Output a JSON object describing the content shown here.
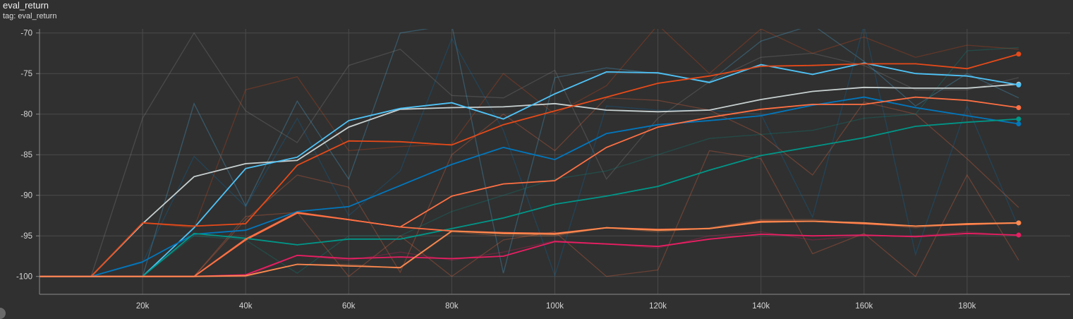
{
  "header": {
    "title": "eval_return",
    "tag": "tag: eval_return"
  },
  "chart_data": {
    "type": "line",
    "title": "eval_return",
    "xlabel": "",
    "ylabel": "",
    "xlim": [
      0,
      200000
    ],
    "ylim": [
      -102.2,
      -69.5
    ],
    "x_ticks": [
      20000,
      40000,
      60000,
      80000,
      100000,
      120000,
      140000,
      160000,
      180000
    ],
    "x_tick_labels": [
      "20k",
      "40k",
      "60k",
      "80k",
      "100k",
      "120k",
      "140k",
      "160k",
      "180k"
    ],
    "y_ticks": [
      -100,
      -95,
      -90,
      -85,
      -80,
      -75,
      -70
    ],
    "y_tick_labels": [
      "-100",
      "-95",
      "-90",
      "-85",
      "-80",
      "-75",
      "-70"
    ],
    "grid": true,
    "legend": "none",
    "x": [
      0,
      10000,
      20000,
      30000,
      40000,
      50000,
      60000,
      70000,
      80000,
      90000,
      100000,
      110000,
      120000,
      130000,
      140000,
      150000,
      160000,
      170000,
      180000,
      190000
    ],
    "series": [
      {
        "color": "#c8d0d0",
        "values": [
          -100,
          -100,
          -93.5,
          -87.7,
          -86.1,
          -85.7,
          -81.6,
          -79.4,
          -79.2,
          -79.1,
          -78.7,
          -79.5,
          -79.7,
          -79.5,
          -78.2,
          -77.2,
          -76.7,
          -76.8,
          -76.8,
          -76.3
        ]
      },
      {
        "color": "#4fc3f7",
        "values": [
          -100,
          -100,
          -100,
          -94.0,
          -86.7,
          -85.3,
          -80.8,
          -79.3,
          -78.6,
          -80.6,
          -77.5,
          -74.8,
          -74.9,
          -76.1,
          -73.9,
          -75.1,
          -73.7,
          -75.0,
          -75.3,
          -76.4
        ]
      },
      {
        "color": "#e64a19",
        "values": [
          -100,
          -100,
          -93.4,
          -93.8,
          -93.5,
          -86.3,
          -83.3,
          -83.4,
          -83.8,
          -81.3,
          -79.6,
          -77.9,
          -76.2,
          -75.3,
          -74.1,
          -74.0,
          -73.8,
          -73.8,
          -74.4,
          -72.6
        ]
      },
      {
        "color": "#0277bd",
        "values": [
          -100,
          -100,
          -98.2,
          -94.8,
          -94.3,
          -92.0,
          -91.4,
          -88.8,
          -86.2,
          -84.1,
          -85.6,
          -82.4,
          -81.3,
          -80.8,
          -80.2,
          -78.9,
          -77.9,
          -79.2,
          -80.2,
          -81.2
        ]
      },
      {
        "color": "#ff7043",
        "values": [
          -100,
          -100,
          -100,
          -100,
          -95.5,
          -92.2,
          -93.0,
          -93.9,
          -90.1,
          -88.6,
          -88.2,
          -84.1,
          -81.6,
          -80.4,
          -79.4,
          -78.8,
          -78.8,
          -77.9,
          -78.3,
          -79.2
        ]
      },
      {
        "color": "#009688",
        "values": [
          -100,
          -100,
          -100,
          -94.7,
          -95.3,
          -96.1,
          -95.4,
          -95.4,
          -94.1,
          -92.8,
          -91.1,
          -90.1,
          -88.9,
          -86.9,
          -85.1,
          -84.0,
          -82.9,
          -81.5,
          -81.0,
          -80.6
        ]
      },
      {
        "color": "#ff7043",
        "values": [
          -100,
          -100,
          -100,
          -100,
          -95.4,
          -92.1,
          -93.0,
          -93.9,
          -94.4,
          -94.6,
          -94.7,
          -94.0,
          -94.2,
          -94.1,
          -93.2,
          -93.2,
          -93.5,
          -93.8,
          -93.6,
          -93.4
        ]
      },
      {
        "color": "#e91e63",
        "values": [
          -100,
          -100,
          -100,
          -100,
          -99.8,
          -97.4,
          -97.8,
          -97.6,
          -97.8,
          -97.5,
          -95.7,
          -96.0,
          -96.3,
          -95.4,
          -94.8,
          -95.0,
          -94.9,
          -95.1,
          -94.7,
          -94.9
        ]
      },
      {
        "color": "#ff8a4f",
        "values": [
          -100,
          -100,
          -100,
          -100,
          -99.9,
          -98.5,
          -98.7,
          -98.9,
          -94.4,
          -94.7,
          -94.8,
          -94.0,
          -94.3,
          -94.1,
          -93.3,
          -93.2,
          -93.4,
          -93.8,
          -93.5,
          -93.4
        ]
      }
    ],
    "raw_series": [
      {
        "color": "#909090",
        "values": [
          -100,
          -100,
          -80.5,
          -70.0,
          -79.6,
          -83.5,
          -74.0,
          -72.0,
          -77.7,
          -78.0,
          -74.6,
          -88.0,
          -80.5,
          -76.0,
          -73.0,
          -72.5,
          -74.0,
          -77.0,
          -77.0,
          -75.5
        ]
      },
      {
        "color": "#4fc3f7",
        "values": [
          -100,
          -100,
          -100,
          -78.7,
          -91.3,
          -78.4,
          -88.0,
          -70.0,
          -69.0,
          -99.6,
          -75.5,
          -74.3,
          -75.0,
          -76.0,
          -71.0,
          -69.0,
          -73.5,
          -79.0,
          -75.0,
          -78.0
        ]
      },
      {
        "color": "#e64a19",
        "values": [
          -100,
          -100,
          -93.4,
          -94.0,
          -77.0,
          -75.4,
          -84.5,
          -84.0,
          -83.7,
          -75.0,
          -80.0,
          -76.5,
          -69.0,
          -75.0,
          -69.5,
          -72.5,
          -70.5,
          -73.0,
          -71.5,
          -72.0
        ]
      },
      {
        "color": "#0277bd",
        "values": [
          -100,
          -100,
          -98.3,
          -85.2,
          -91.4,
          -80.5,
          -92.5,
          -87.0,
          -70.7,
          -82.0,
          -99.9,
          -79.0,
          -79.5,
          -79.5,
          -80.0,
          -92.7,
          -69.0,
          -97.3,
          -79.0,
          -94.0
        ]
      },
      {
        "color": "#ff7043",
        "values": [
          -100,
          -100,
          -100,
          -100,
          -93.0,
          -87.5,
          -89.0,
          -99.5,
          -85.0,
          -80.0,
          -84.5,
          -78.0,
          -78.3,
          -79.5,
          -82.5,
          -87.5,
          -78.5,
          -80.0,
          -85.5,
          -91.5
        ]
      },
      {
        "color": "#009688",
        "values": [
          -100,
          -100,
          -100,
          -95.0,
          -95.5,
          -99.6,
          -95.0,
          -95.0,
          -92.0,
          -90.0,
          -88.0,
          -87.0,
          -85.0,
          -83.0,
          -82.5,
          -82.0,
          -80.5,
          -80.0,
          -72.2,
          -71.8
        ]
      },
      {
        "color": "#ff7043",
        "values": [
          -100,
          -100,
          -100,
          -100,
          -92.6,
          -92.1,
          -100,
          -95.0,
          -100,
          -95.5,
          -94.5,
          -100,
          -99.2,
          -84.5,
          -85.5,
          -97.2,
          -94.7,
          -100,
          -87.5,
          -98.0
        ]
      },
      {
        "color": "#e91e63",
        "values": [
          -100,
          -100,
          -100,
          -100,
          -100,
          -97.4,
          -98.0,
          -97.0,
          -98.0,
          -97.0,
          -95.6,
          -96.0,
          -96.5,
          -95.0,
          -94.5,
          -95.5,
          -95.0,
          -95.0,
          -94.5,
          -95.0
        ]
      },
      {
        "color": "#ff8a4f",
        "values": [
          -100,
          -100,
          -100,
          -100,
          -100,
          -98.5,
          -98.5,
          -99.0,
          -94.5,
          -95.0,
          -95.0,
          -94.0,
          -94.5,
          -94.0,
          -93.0,
          -93.0,
          -93.5,
          -94.0,
          -93.5,
          -93.5
        ]
      }
    ]
  }
}
